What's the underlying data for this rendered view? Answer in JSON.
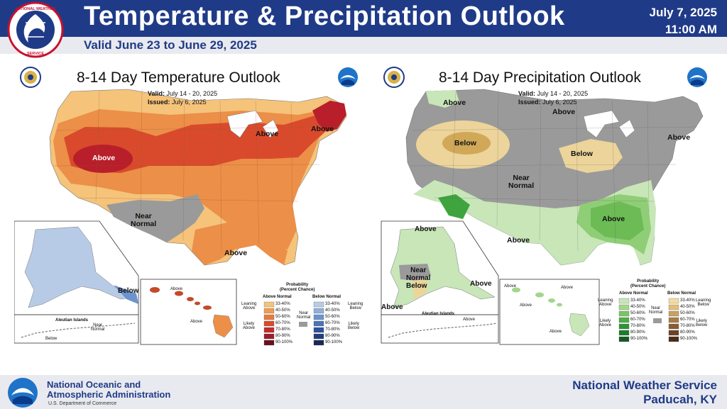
{
  "header": {
    "title": "Temperature & Precipitation Outlook",
    "subtitle": "Valid June 23 to June 29, 2025",
    "date": "July 7, 2025",
    "time": "11:00 AM",
    "logo_text": "NATIONAL WEATHER SERVICE"
  },
  "temp_map": {
    "title": "8-14 Day Temperature Outlook",
    "valid_label": "Valid:",
    "valid": "July 14 - 20, 2025",
    "issued_label": "Issued:",
    "issued": "July 6, 2025",
    "regions": {
      "west_above": "Above",
      "northeast_above": "Above",
      "great_lakes_above": "Above",
      "near_normal": "Near\nNormal",
      "south_above": "Above",
      "alaska_below": "Below",
      "hawaii_above_1": "Above",
      "hawaii_above_2": "Above",
      "aleutian_normal": "Near\nNormal",
      "aleutian_below": "Below",
      "aleutian_islands": "Aleutian Islands"
    },
    "legend": {
      "title": "Probability\n(Percent Chance)",
      "left_col": "Above Normal",
      "right_col": "Below Normal",
      "leaning_above": "Leaning\nAbove",
      "likely_above": "Likely\nAbove",
      "near_normal": "Near\nNormal",
      "leaning_below": "Leaning\nBelow",
      "likely_below": "Likely\nBelow",
      "ranges": [
        "33-40%",
        "40-50%",
        "50-60%",
        "60-70%",
        "70-80%",
        "80-90%",
        "90-100%"
      ],
      "above_colors": [
        "#f5c37a",
        "#ef9c52",
        "#e77a3c",
        "#d94a2c",
        "#c42a2a",
        "#9c1c2a",
        "#6a1020"
      ],
      "below_colors": [
        "#b8cbe6",
        "#8fb0da",
        "#6d93cc",
        "#4b73b8",
        "#2e519c",
        "#233c7c",
        "#1a2858"
      ]
    }
  },
  "precip_map": {
    "title": "8-14 Day Precipitation Outlook",
    "valid_label": "Valid:",
    "valid": "July 14 - 20, 2025",
    "issued_label": "Issued:",
    "issued": "July 6, 2025",
    "regions": {
      "nw_above": "Above",
      "north_above": "Above",
      "ne_above": "Above",
      "plains_below": "Below",
      "lakes_below": "Below",
      "near_normal": "Near\nNormal",
      "se_above": "Above",
      "sw_above": "Above",
      "ak_above": "Above",
      "ak_near_normal": "Near\nNormal",
      "ak_below": "Below",
      "ak_above_s": "Above",
      "ak_above_w": "Above",
      "hi_above_1": "Above",
      "hi_above_2": "Above",
      "hi_above_3": "Above",
      "hi_above_4": "Above",
      "aleutian_islands": "Aleutian Islands",
      "aleutian_above": "Above"
    },
    "legend": {
      "title": "Probability\n(Percent Chance)",
      "left_col": "Above Normal",
      "right_col": "Below Normal",
      "leaning_above": "Leaning\nAbove",
      "likely_above": "Likely\nAbove",
      "near_normal": "Near\nNormal",
      "leaning_below": "Leaning\nBelow",
      "likely_below": "Likely\nBelow",
      "ranges": [
        "33-40%",
        "40-50%",
        "50-60%",
        "60-70%",
        "70-80%",
        "80-90%",
        "90-100%"
      ],
      "above_colors": [
        "#c8e6b8",
        "#a3d68c",
        "#7cc465",
        "#4fae45",
        "#2e9438",
        "#1e7a2e",
        "#135a22"
      ],
      "below_colors": [
        "#f2dca0",
        "#e2bf7a",
        "#c8a060",
        "#a87c48",
        "#8a5c34",
        "#6a4226",
        "#4a2c18"
      ]
    }
  },
  "footer": {
    "org_line1": "National Oceanic and",
    "org_line2": "Atmospheric Administration",
    "dept": "U.S. Department of Commerce",
    "office_line1": "National Weather Service",
    "office_line2": "Paducah, KY"
  },
  "colors": {
    "header_blue": "#1f3b88",
    "near_normal_gray": "#9a9a9a",
    "temp_above_light": "#f5c37a",
    "temp_above_mid": "#ec8f48",
    "temp_above_dark": "#d94a2c",
    "temp_above_darkest": "#b81f2a",
    "precip_below_light": "#ecd49a",
    "precip_below_dark": "#d0a858",
    "precip_above_light": "#c8e6b8",
    "precip_above_mid": "#8fce76",
    "precip_above_dark": "#3fa43e"
  }
}
